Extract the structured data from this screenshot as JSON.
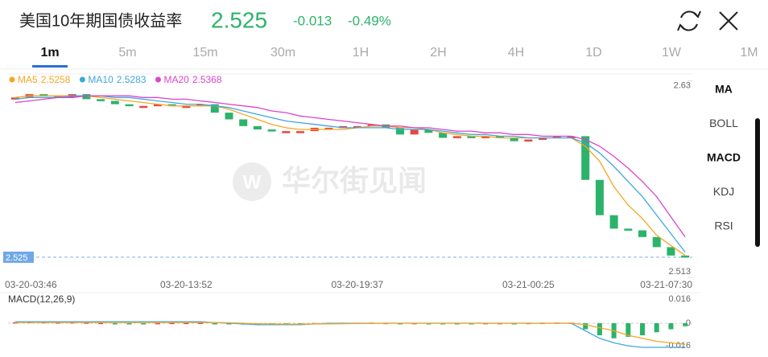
{
  "header": {
    "title": "美国10年期国债收益率",
    "price": "2.525",
    "change": "-0.013",
    "change_pct": "-0.49%"
  },
  "tabs": {
    "items": [
      "1m",
      "5m",
      "15m",
      "30m",
      "1H",
      "2H",
      "4H",
      "1D",
      "1W",
      "1M"
    ],
    "active": 0
  },
  "side_menu": {
    "items": [
      "MA",
      "BOLL",
      "MACD",
      "KDJ",
      "RSI"
    ],
    "highlighted": [
      0,
      2
    ]
  },
  "watermark": {
    "logo": "W",
    "text": "华尔街见闻"
  },
  "chart_data": {
    "type": "candlestick",
    "up_color": "#e8473f",
    "down_color": "#2cb36a",
    "categories": [
      null,
      null,
      "03-20-03:46",
      null,
      null,
      null,
      null,
      null,
      null,
      null,
      null,
      null,
      "03-20-13:52",
      null,
      null,
      null,
      null,
      null,
      null,
      null,
      null,
      null,
      null,
      null,
      "03-20-19:37",
      null,
      null,
      null,
      null,
      null,
      null,
      null,
      null,
      null,
      null,
      null,
      "03-21-00:25",
      null,
      null,
      null,
      null,
      null,
      null,
      null,
      null,
      null,
      "03-21-07:30",
      null
    ],
    "open": [
      2.619,
      2.62,
      2.622,
      2.621,
      2.62,
      2.622,
      2.619,
      2.618,
      2.616,
      2.615,
      2.615,
      2.616,
      2.615,
      2.615,
      2.616,
      2.611,
      2.607,
      2.603,
      2.601,
      2.6,
      2.6,
      2.6,
      2.602,
      2.602,
      2.603,
      2.603,
      2.604,
      2.602,
      2.598,
      2.601,
      2.599,
      2.596,
      2.597,
      2.596,
      2.597,
      2.596,
      2.594,
      2.595,
      2.596,
      2.597,
      2.597,
      2.571,
      2.55,
      2.542,
      2.541,
      2.537,
      2.531,
      2.526
    ],
    "close": [
      2.62,
      2.622,
      2.621,
      2.62,
      2.622,
      2.619,
      2.618,
      2.616,
      2.615,
      2.615,
      2.616,
      2.615,
      2.615,
      2.616,
      2.611,
      2.607,
      2.603,
      2.601,
      2.6,
      2.6,
      2.6,
      2.602,
      2.602,
      2.603,
      2.603,
      2.604,
      2.602,
      2.598,
      2.601,
      2.599,
      2.596,
      2.597,
      2.596,
      2.597,
      2.596,
      2.594,
      2.595,
      2.596,
      2.597,
      2.597,
      2.571,
      2.55,
      2.542,
      2.541,
      2.537,
      2.531,
      2.526,
      2.525
    ],
    "ylim": [
      2.513,
      2.634
    ],
    "yticks": [
      2.513,
      2.63
    ],
    "current": 2.525,
    "series": [
      {
        "name": "MA5",
        "last": 2.5258,
        "color": "#f5a623",
        "values": [
          2.62,
          2.621,
          2.621,
          2.621,
          2.621,
          2.621,
          2.62,
          2.619,
          2.618,
          2.617,
          2.616,
          2.615,
          2.615,
          2.615,
          2.615,
          2.613,
          2.61,
          2.607,
          2.604,
          2.602,
          2.601,
          2.601,
          2.601,
          2.601,
          2.602,
          2.603,
          2.603,
          2.602,
          2.602,
          2.601,
          2.599,
          2.598,
          2.597,
          2.597,
          2.596,
          2.596,
          2.596,
          2.596,
          2.596,
          2.596,
          2.591,
          2.582,
          2.567,
          2.556,
          2.548,
          2.538,
          2.532,
          2.526
        ]
      },
      {
        "name": "MA10",
        "last": 2.5283,
        "color": "#3fa7e0",
        "values": [
          2.619,
          2.62,
          2.62,
          2.62,
          2.621,
          2.621,
          2.621,
          2.62,
          2.62,
          2.619,
          2.618,
          2.617,
          2.616,
          2.616,
          2.615,
          2.614,
          2.612,
          2.61,
          2.608,
          2.606,
          2.605,
          2.604,
          2.603,
          2.602,
          2.602,
          2.602,
          2.602,
          2.601,
          2.601,
          2.601,
          2.6,
          2.599,
          2.598,
          2.598,
          2.597,
          2.597,
          2.596,
          2.596,
          2.596,
          2.596,
          2.593,
          2.587,
          2.579,
          2.57,
          2.561,
          2.55,
          2.539,
          2.528
        ]
      },
      {
        "name": "MA20",
        "last": 2.5368,
        "color": "#d946c8",
        "values": [
          2.617,
          2.618,
          2.619,
          2.62,
          2.62,
          2.621,
          2.621,
          2.621,
          2.621,
          2.62,
          2.62,
          2.619,
          2.619,
          2.618,
          2.617,
          2.616,
          2.615,
          2.614,
          2.612,
          2.611,
          2.609,
          2.608,
          2.607,
          2.606,
          2.605,
          2.604,
          2.603,
          2.603,
          2.602,
          2.602,
          2.601,
          2.6,
          2.6,
          2.599,
          2.599,
          2.598,
          2.598,
          2.597,
          2.597,
          2.597,
          2.595,
          2.591,
          2.585,
          2.578,
          2.57,
          2.561,
          2.549,
          2.537
        ]
      }
    ],
    "macd": {
      "title": "MACD(12,26,9)",
      "ylim": [
        -0.016,
        0.016
      ],
      "yticks": [
        -0.016,
        0,
        0.016
      ],
      "histogram": [
        0.0006,
        0.0008,
        0.0007,
        0.0005,
        0.0006,
        0.0004,
        0.0002,
        -0.0002,
        -0.0003,
        -0.0002,
        0.0001,
        0.0002,
        0.0002,
        0.0003,
        -0.0004,
        -0.0007,
        -0.0009,
        -0.0008,
        -0.0006,
        -0.0004,
        -0.0002,
        0.0001,
        0.0002,
        0.0003,
        0.0003,
        0.0004,
        0.0002,
        -0.0002,
        0.0001,
        -0.0001,
        -0.0003,
        -0.0002,
        -0.0002,
        0.0001,
        0.0001,
        -0.0001,
        0.0002,
        0.0003,
        0.0004,
        0.0004,
        -0.004,
        -0.008,
        -0.01,
        -0.009,
        -0.008,
        -0.006,
        -0.004,
        -0.002
      ],
      "dif": {
        "color": "#3fa7e0",
        "values": [
          0.001,
          0.001,
          0.001,
          0.001,
          0.001,
          0.001,
          0.001,
          0.001,
          0.001,
          0.001,
          0.001,
          0.001,
          0.001,
          0.001,
          0.0005,
          0,
          -0.0005,
          -0.001,
          -0.001,
          -0.001,
          -0.001,
          -0.0005,
          0,
          0,
          0,
          0,
          0,
          0,
          0,
          0,
          0,
          0,
          0,
          0,
          0,
          0,
          0,
          0,
          0,
          0,
          -0.005,
          -0.01,
          -0.013,
          -0.015,
          -0.016,
          -0.016,
          -0.016,
          -0.016
        ]
      },
      "dea": {
        "color": "#f5a623",
        "values": [
          0.0005,
          0.0005,
          0.0005,
          0.0005,
          0.0005,
          0.0005,
          0.0005,
          0.0005,
          0.0005,
          0.0005,
          0.0005,
          0.0005,
          0.0005,
          0.0005,
          0.0005,
          0.0003,
          0,
          -0.0003,
          -0.0005,
          -0.0006,
          -0.0006,
          -0.0005,
          -0.0004,
          -0.0003,
          -0.0002,
          -0.0001,
          0,
          0,
          0,
          0,
          0,
          0,
          0,
          0,
          0,
          0,
          0,
          0,
          0,
          0,
          -0.001,
          -0.003,
          -0.005,
          -0.008,
          -0.01,
          -0.012,
          -0.013,
          -0.014
        ]
      }
    }
  }
}
